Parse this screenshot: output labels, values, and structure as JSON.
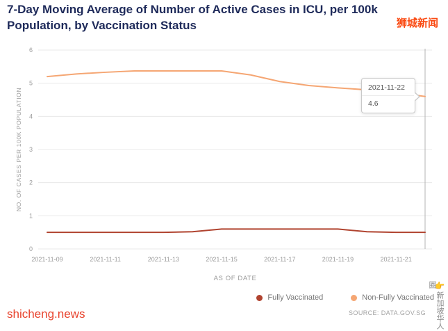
{
  "page": {
    "title": "7-Day Moving Average of Number of Active Cases in ICU, per 100k Population, by Vaccination Status",
    "watermark_top": "狮城新闻",
    "watermark_bottom_left": "shicheng.news",
    "watermark_right_vertical": "新加坡华人圈",
    "pointer_icon": "👉",
    "source": "SOURCE: DATA.GOV.SG"
  },
  "chart_data": {
    "type": "line",
    "title": "7-Day Moving Average of Number of Active Cases in ICU, per 100k Population, by Vaccination Status",
    "xlabel": "AS OF DATE",
    "ylabel": "NO. OF CASES PER 100K POPULATION",
    "ylim": [
      0,
      6
    ],
    "yticks": [
      0,
      1,
      2,
      3,
      4,
      5,
      6
    ],
    "grid": true,
    "legend_position": "bottom-right",
    "x": [
      "2021-11-09",
      "2021-11-10",
      "2021-11-11",
      "2021-11-12",
      "2021-11-13",
      "2021-11-14",
      "2021-11-15",
      "2021-11-16",
      "2021-11-17",
      "2021-11-18",
      "2021-11-19",
      "2021-11-20",
      "2021-11-21",
      "2021-11-22"
    ],
    "xtick_labels": [
      "2021-11-09",
      "2021-11-11",
      "2021-11-13",
      "2021-11-15",
      "2021-11-17",
      "2021-11-19",
      "2021-11-21"
    ],
    "series": [
      {
        "name": "Fully Vaccinated",
        "color": "#b0432f",
        "values": [
          0.5,
          0.5,
          0.5,
          0.5,
          0.5,
          0.52,
          0.6,
          0.6,
          0.6,
          0.6,
          0.6,
          0.52,
          0.5,
          0.5
        ]
      },
      {
        "name": "Non-Fully Vaccinated",
        "color": "#f5a673",
        "values": [
          5.2,
          5.28,
          5.33,
          5.37,
          5.37,
          5.37,
          5.37,
          5.25,
          5.05,
          4.93,
          4.86,
          4.8,
          4.72,
          4.6
        ]
      }
    ],
    "crosshair_x": "2021-11-22",
    "tooltip": {
      "date": "2021-11-22",
      "value": "4.6"
    }
  }
}
